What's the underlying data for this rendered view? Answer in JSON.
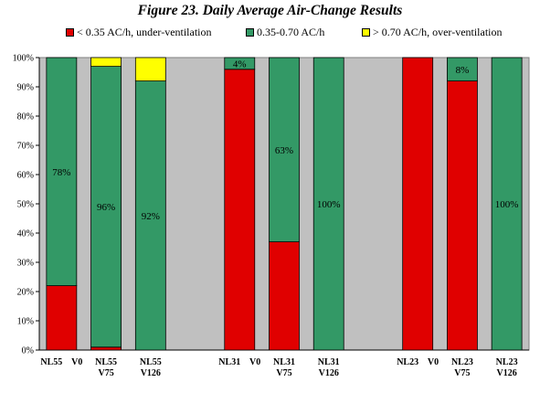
{
  "chart_data": {
    "type": "bar",
    "stacked": true,
    "title": "Figure 23. Daily Average Air-Change Results",
    "categories": [
      "NL55 V0",
      "NL55 V75",
      "NL55 V126",
      "",
      "NL31 V0",
      "NL31 V75",
      "NL31 V126",
      "",
      "NL23 V0",
      "NL23 V75",
      "NL23 V126"
    ],
    "category_labels": [
      [
        "NL55    V0"
      ],
      [
        "NL55",
        "V75"
      ],
      [
        "NL55",
        "V126"
      ],
      [],
      [
        "NL31    V0"
      ],
      [
        "NL31",
        "V75"
      ],
      [
        "NL31",
        "V126"
      ],
      [],
      [
        "NL23    V0"
      ],
      [
        "NL23",
        "V75"
      ],
      [
        "NL23",
        "V126"
      ]
    ],
    "series": [
      {
        "name": "< 0.35 AC/h, under-ventilation",
        "color": "#e00000",
        "values": [
          22,
          1,
          0,
          0,
          96,
          37,
          0,
          0,
          100,
          92,
          0
        ]
      },
      {
        "name": "0.35-0.70 AC/h",
        "color": "#339966",
        "values": [
          78,
          96,
          92,
          0,
          4,
          63,
          100,
          0,
          0,
          8,
          100
        ]
      },
      {
        "name": "> 0.70 AC/h, over-ventilation",
        "color": "#ffff00",
        "values": [
          0,
          3,
          8,
          0,
          0,
          0,
          0,
          0,
          0,
          0,
          0
        ]
      }
    ],
    "data_labels": [
      "78%",
      "96%",
      "92%",
      "",
      "4%",
      "63%",
      "100%",
      "",
      "",
      "8%",
      "100%"
    ],
    "yticks": [
      "0%",
      "10%",
      "20%",
      "30%",
      "40%",
      "50%",
      "60%",
      "70%",
      "80%",
      "90%",
      "100%"
    ],
    "ylim": [
      0,
      100
    ],
    "plot_background": "#c0c0c0",
    "grid": false,
    "legend_position": "top"
  }
}
